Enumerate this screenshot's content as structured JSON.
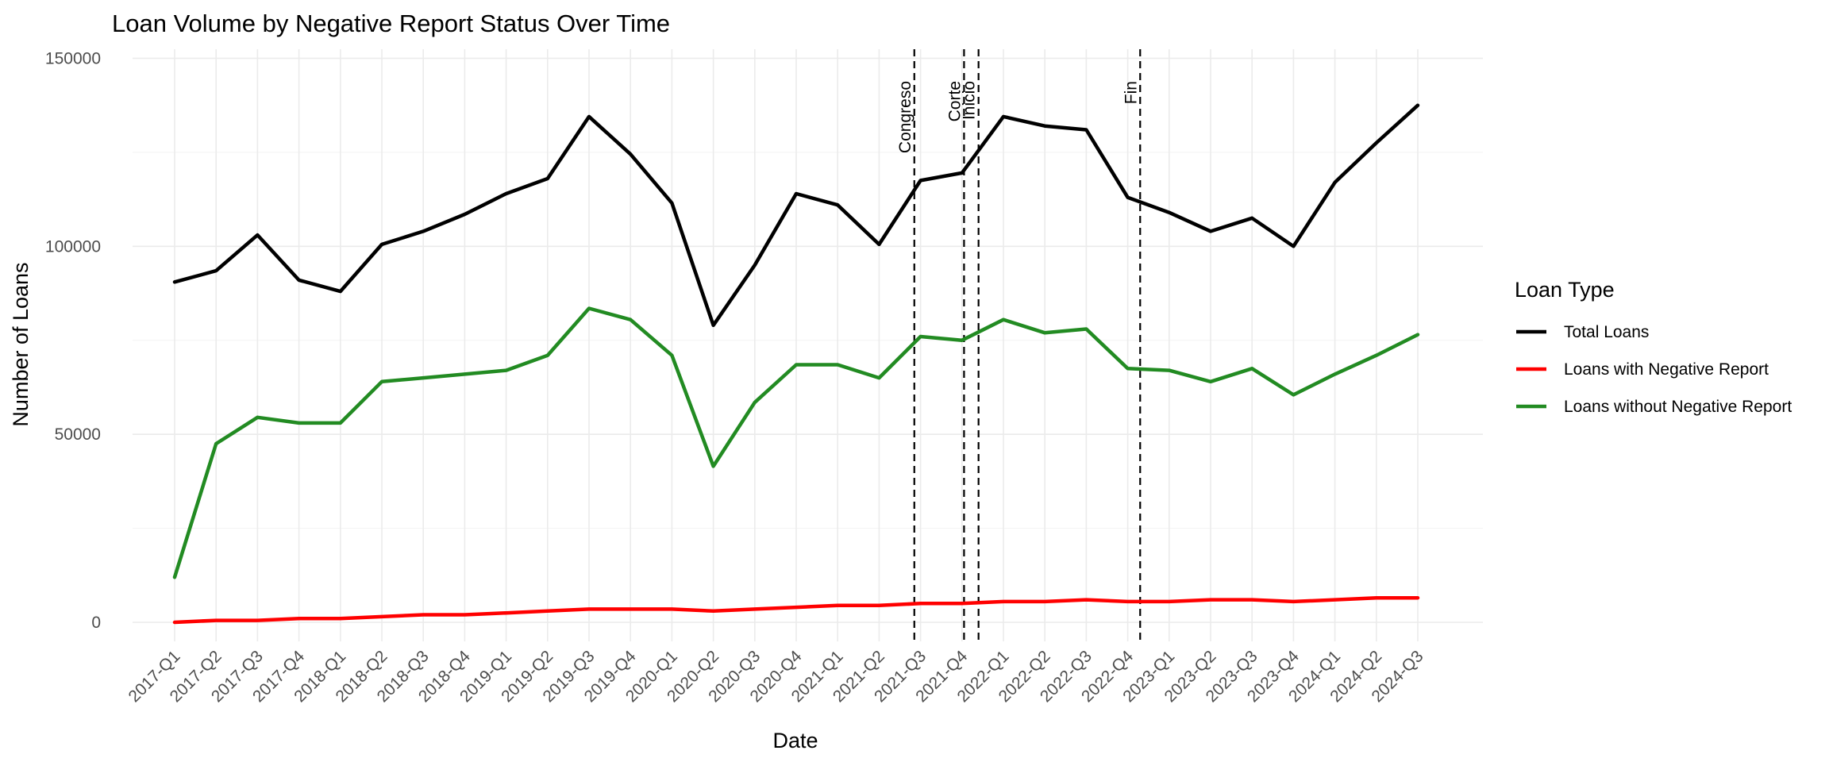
{
  "chart_data": {
    "type": "line",
    "title": "Loan Volume by Negative Report Status Over Time",
    "xlabel": "Date",
    "ylabel": "Number of Loans",
    "ylim": [
      -10000,
      155000
    ],
    "yticks": [
      0,
      50000,
      100000,
      150000
    ],
    "grid": true,
    "legend": {
      "title": "Loan Type",
      "position": "right"
    },
    "categories": [
      "2017-Q1",
      "2017-Q2",
      "2017-Q3",
      "2017-Q4",
      "2018-Q1",
      "2018-Q2",
      "2018-Q3",
      "2018-Q4",
      "2019-Q1",
      "2019-Q2",
      "2019-Q3",
      "2019-Q4",
      "2020-Q1",
      "2020-Q2",
      "2020-Q3",
      "2020-Q4",
      "2021-Q1",
      "2021-Q2",
      "2021-Q3",
      "2021-Q4",
      "2022-Q1",
      "2022-Q2",
      "2022-Q3",
      "2022-Q4",
      "2023-Q1",
      "2023-Q2",
      "2023-Q3",
      "2023-Q4",
      "2024-Q1",
      "2024-Q2",
      "2024-Q3"
    ],
    "series": [
      {
        "name": "Total Loans",
        "color": "#000000",
        "values": [
          90500,
          93500,
          103000,
          91000,
          88000,
          100500,
          104000,
          108500,
          114000,
          118000,
          134500,
          124500,
          111500,
          79000,
          95000,
          114000,
          111000,
          100500,
          117500,
          119500,
          134500,
          132000,
          131000,
          113000,
          109000,
          104000,
          107500,
          100000,
          117000,
          127500,
          137500
        ]
      },
      {
        "name": "Loans with Negative Report",
        "color": "#ff0000",
        "values": [
          0,
          500,
          500,
          1000,
          1000,
          1500,
          2000,
          2000,
          2500,
          3000,
          3500,
          3500,
          3500,
          3000,
          3500,
          4000,
          4500,
          4500,
          5000,
          5000,
          5500,
          5500,
          6000,
          5500,
          5500,
          6000,
          6000,
          5500,
          6000,
          6500,
          6500
        ]
      },
      {
        "name": "Loans without Negative Report",
        "color": "#228b22",
        "values": [
          12000,
          47500,
          54500,
          53000,
          53000,
          64000,
          65000,
          66000,
          67000,
          71000,
          83500,
          80500,
          71000,
          41500,
          58500,
          68500,
          68500,
          65000,
          76000,
          75000,
          80500,
          77000,
          78000,
          67500,
          67000,
          64000,
          67500,
          60500,
          66000,
          71000,
          76500
        ]
      }
    ],
    "events": [
      {
        "label": "Congreso",
        "x": 17.85
      },
      {
        "label": "Corte",
        "x": 19.05
      },
      {
        "label": "Inicio",
        "x": 19.4
      },
      {
        "label": "Fin",
        "x": 23.3
      }
    ]
  }
}
